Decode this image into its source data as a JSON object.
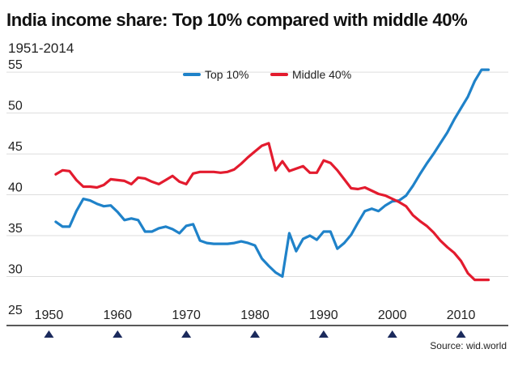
{
  "title": "India income share: Top 10% compared with middle 40%",
  "subtitle": "1951-2014",
  "source": "Source: wid.world",
  "colors": {
    "top10": "#1f82c9",
    "middle40": "#e31b2e",
    "marker": "#1b2a5c",
    "grid": "#dddddd",
    "axis": "#222222"
  },
  "chart_data": {
    "type": "line",
    "xlim": [
      1945,
      2015
    ],
    "ylim": [
      25,
      56
    ],
    "yticks": [
      25,
      30,
      35,
      40,
      45,
      50,
      55
    ],
    "xticks": [
      1950,
      1960,
      1970,
      1980,
      1990,
      2000,
      2010
    ],
    "grid": true,
    "legend": "top-center",
    "series": [
      {
        "name": "Top 10%",
        "color": "#1f82c9",
        "x": [
          1951,
          1952,
          1953,
          1954,
          1955,
          1956,
          1957,
          1958,
          1959,
          1960,
          1961,
          1962,
          1963,
          1964,
          1965,
          1966,
          1967,
          1968,
          1969,
          1970,
          1971,
          1972,
          1973,
          1974,
          1975,
          1976,
          1977,
          1978,
          1979,
          1980,
          1981,
          1982,
          1983,
          1984,
          1985,
          1986,
          1987,
          1988,
          1989,
          1990,
          1991,
          1992,
          1993,
          1994,
          1995,
          1996,
          1997,
          1998,
          1999,
          2000,
          2001,
          2002,
          2003,
          2004,
          2005,
          2006,
          2007,
          2008,
          2009,
          2010,
          2011,
          2012,
          2013,
          2014
        ],
        "values": [
          36.7,
          36.1,
          36.1,
          38.0,
          39.5,
          39.3,
          38.9,
          38.6,
          38.7,
          37.9,
          36.9,
          37.1,
          36.9,
          35.5,
          35.5,
          35.9,
          36.1,
          35.8,
          35.3,
          36.2,
          36.4,
          34.4,
          34.1,
          34.0,
          34.0,
          34.0,
          34.1,
          34.3,
          34.1,
          33.8,
          32.2,
          31.3,
          30.5,
          30.0,
          35.3,
          33.1,
          34.6,
          35.0,
          34.5,
          35.5,
          35.5,
          33.4,
          34.1,
          35.1,
          36.6,
          38.0,
          38.3,
          38.0,
          38.7,
          39.2,
          39.3,
          39.9,
          41.1,
          42.5,
          43.8,
          45.0,
          46.3,
          47.6,
          49.2,
          50.6,
          52.0,
          53.9,
          55.3,
          55.3
        ]
      },
      {
        "name": "Middle 40%",
        "color": "#e31b2e",
        "x": [
          1951,
          1952,
          1953,
          1954,
          1955,
          1956,
          1957,
          1958,
          1959,
          1960,
          1961,
          1962,
          1963,
          1964,
          1965,
          1966,
          1967,
          1968,
          1969,
          1970,
          1971,
          1972,
          1973,
          1974,
          1975,
          1976,
          1977,
          1978,
          1979,
          1980,
          1981,
          1982,
          1983,
          1984,
          1985,
          1986,
          1987,
          1988,
          1989,
          1990,
          1991,
          1992,
          1993,
          1994,
          1995,
          1996,
          1997,
          1998,
          1999,
          2000,
          2001,
          2002,
          2003,
          2004,
          2005,
          2006,
          2007,
          2008,
          2009,
          2010,
          2011,
          2012,
          2013,
          2014
        ],
        "values": [
          42.5,
          43.0,
          42.9,
          41.8,
          41.0,
          41.0,
          40.9,
          41.2,
          41.9,
          41.8,
          41.7,
          41.3,
          42.1,
          42.0,
          41.6,
          41.3,
          41.8,
          42.3,
          41.6,
          41.3,
          42.6,
          42.8,
          42.8,
          42.8,
          42.7,
          42.8,
          43.1,
          43.8,
          44.6,
          45.3,
          46.0,
          46.3,
          43.0,
          44.1,
          42.9,
          43.2,
          43.5,
          42.7,
          42.7,
          44.2,
          43.9,
          43.0,
          41.9,
          40.8,
          40.7,
          40.9,
          40.5,
          40.1,
          39.9,
          39.5,
          39.1,
          38.6,
          37.5,
          36.8,
          36.2,
          35.4,
          34.4,
          33.6,
          32.9,
          31.9,
          30.4,
          29.6,
          29.6,
          29.6
        ]
      }
    ]
  }
}
